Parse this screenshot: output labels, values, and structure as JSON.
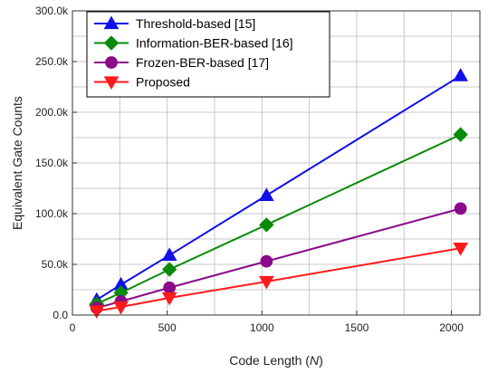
{
  "chart_data": {
    "type": "line",
    "xlabel": "Code Length (",
    "xlabel_var": "N",
    "xlabel_close": ")",
    "ylabel": "Equivalent Gate Counts",
    "xlim": [
      0,
      2150
    ],
    "ylim": [
      0,
      300000
    ],
    "xticks": [
      0,
      500,
      1000,
      1500,
      2000
    ],
    "xtick_labels": [
      "0",
      "500",
      "1000",
      "1500",
      "2000"
    ],
    "yticks": [
      0,
      50000,
      100000,
      150000,
      200000,
      250000,
      300000
    ],
    "ytick_labels": [
      "0.0",
      "50.0k",
      "100.0k",
      "150.0k",
      "200.0k",
      "250.0k",
      "300.0k"
    ],
    "grid": true,
    "legend_position": "top-left",
    "x": [
      128,
      256,
      512,
      1024,
      2048
    ],
    "series": [
      {
        "name": "Threshold-based [15]",
        "color": "#1010e8",
        "marker": "triangle-up",
        "values": [
          15000,
          30000,
          59000,
          118000,
          236000
        ]
      },
      {
        "name": "Information-BER-based [16]",
        "color": "#0a8a0a",
        "marker": "diamond",
        "values": [
          11000,
          22000,
          45000,
          89000,
          178000
        ]
      },
      {
        "name": "Frozen-BER-based [17]",
        "color": "#8a0a8a",
        "marker": "circle",
        "values": [
          7000,
          13500,
          27000,
          53000,
          105000
        ]
      },
      {
        "name": "Proposed",
        "color": "#ff1a1a",
        "marker": "triangle-down",
        "values": [
          4000,
          8000,
          17000,
          33000,
          66000
        ]
      }
    ]
  }
}
